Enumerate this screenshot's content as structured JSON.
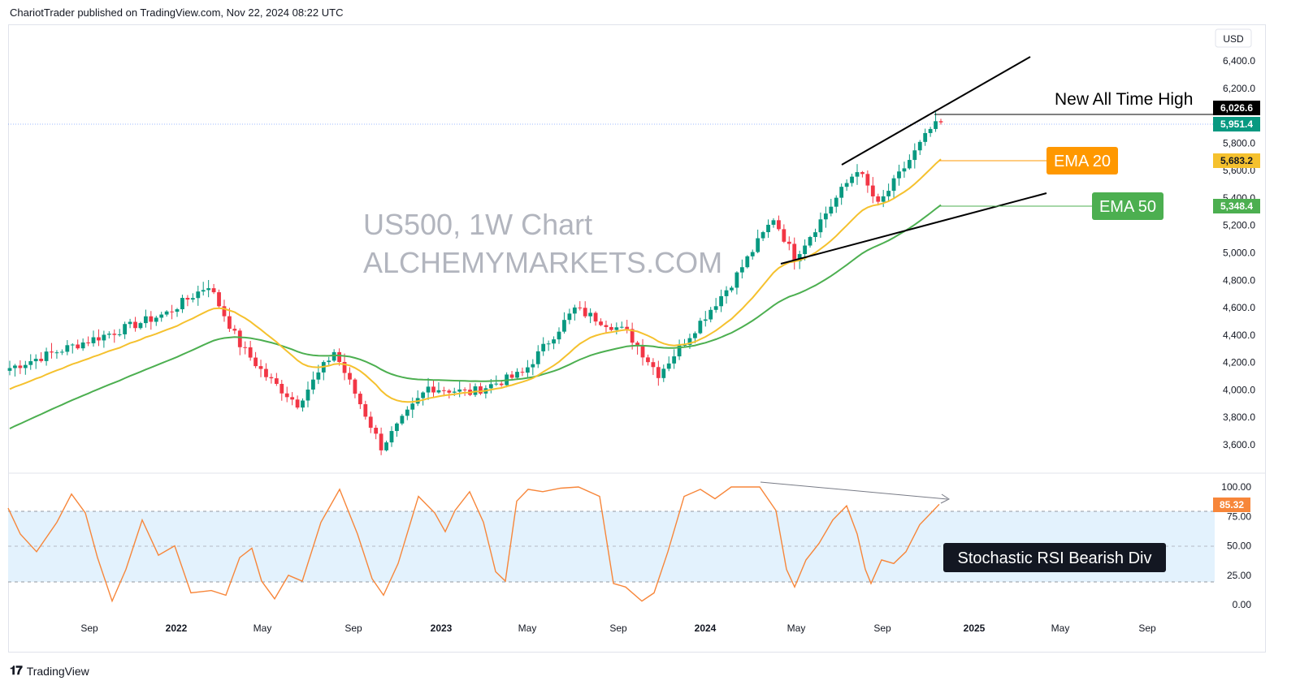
{
  "header": {
    "text": "ChariotTrader published on TradingView.com, Nov 22, 2024 08:22 UTC"
  },
  "footer": {
    "logo": "𝟏𝟕",
    "brand": "TradingView"
  },
  "currency": "USD",
  "watermark": {
    "line1": "US500, 1W Chart",
    "line2": "ALCHEMYMARKETS.COM"
  },
  "colors": {
    "up": "#089981",
    "down": "#f23645",
    "ema20": "#f5c12e",
    "ema50": "#4caf50",
    "stoch": "#f7863a",
    "stoch_band": "#e3f2fd",
    "ema20_box": "#ff9800",
    "ema50_box": "#4caf50",
    "ath_tag": "#000000",
    "last_tag": "#089981"
  },
  "annotations": {
    "ath": "New All Time High",
    "ema20": "EMA 20",
    "ema50": "EMA 50",
    "stoch_div": "Stochastic RSI Bearish Div"
  },
  "price_tags": {
    "ath": "6,026.6",
    "last": "5,951.4",
    "ema20": "5,683.2",
    "ema50": "5,348.4",
    "stoch": "85.32"
  },
  "chart_data": [
    {
      "type": "candlestick",
      "title": "",
      "y_axis_ticks": [
        "6,400.0",
        "6,200.0",
        "5,800.0",
        "5,600.0",
        "5,400.0",
        "5,200.0",
        "5,000.0",
        "4,800.0",
        "4,600.0",
        "4,400.0",
        "4,200.0",
        "4,000.0",
        "3,800.0",
        "3,600.0"
      ],
      "y_axis_values": [
        6400,
        6200,
        5800,
        5600,
        5400,
        5200,
        5000,
        4800,
        4600,
        4400,
        4200,
        4000,
        3800,
        3600
      ],
      "x_axis_ticks": [
        "Sep",
        "2022",
        "May",
        "Sep",
        "2023",
        "May",
        "Sep",
        "2024",
        "May",
        "Sep",
        "2025",
        "May",
        "Sep"
      ],
      "ylim": [
        3460,
        6600
      ],
      "series": [
        {
          "name": "EMA 20",
          "last": 5683.2
        },
        {
          "name": "EMA 50",
          "last": 5348.4
        }
      ],
      "key_points": [
        {
          "x": "2022 Jan",
          "close": 4766
        },
        {
          "x": "2022 Oct",
          "close": 3583
        },
        {
          "x": "2023 Jul",
          "close": 4588
        },
        {
          "x": "2023 Oct",
          "close": 4117
        },
        {
          "x": "2024 Mar",
          "close": 5254
        },
        {
          "x": "2024 Apr",
          "close": 4967
        },
        {
          "x": "2024 Jul",
          "close": 5615
        },
        {
          "x": "2024 Aug",
          "close": 5344
        },
        {
          "x": "2024 Nov",
          "close": 5951.4,
          "high": 6026.6
        }
      ]
    },
    {
      "type": "line",
      "title": "",
      "y_axis_ticks": [
        "100.00",
        "75.00",
        "50.00",
        "25.00",
        "0.00"
      ],
      "y_axis_values": [
        100,
        75,
        50,
        25,
        0
      ],
      "ylim": [
        -3,
        106
      ],
      "band": [
        20,
        80
      ],
      "series": [
        {
          "name": "",
          "last": 85.32
        }
      ],
      "key_points": [
        {
          "x": "2021 Jul",
          "value": 82
        },
        {
          "x": "2021 Aug",
          "value": 94
        },
        {
          "x": "2021 Oct",
          "value": 3
        },
        {
          "x": "2022 Jun",
          "value": 5
        },
        {
          "x": "2022 Aug",
          "value": 98
        },
        {
          "x": "2022 Oct",
          "value": 8
        },
        {
          "x": "2023 Jan",
          "value": 95
        },
        {
          "x": "2023 Jul",
          "value": 100
        },
        {
          "x": "2023 Oct",
          "value": 3
        },
        {
          "x": "2024 Mar",
          "value": 100
        },
        {
          "x": "2024 Apr",
          "value": 15
        },
        {
          "x": "2024 Jul",
          "value": 84
        },
        {
          "x": "2024 Aug",
          "value": 20
        },
        {
          "x": "2024 Nov",
          "value": 85.32
        }
      ]
    }
  ]
}
